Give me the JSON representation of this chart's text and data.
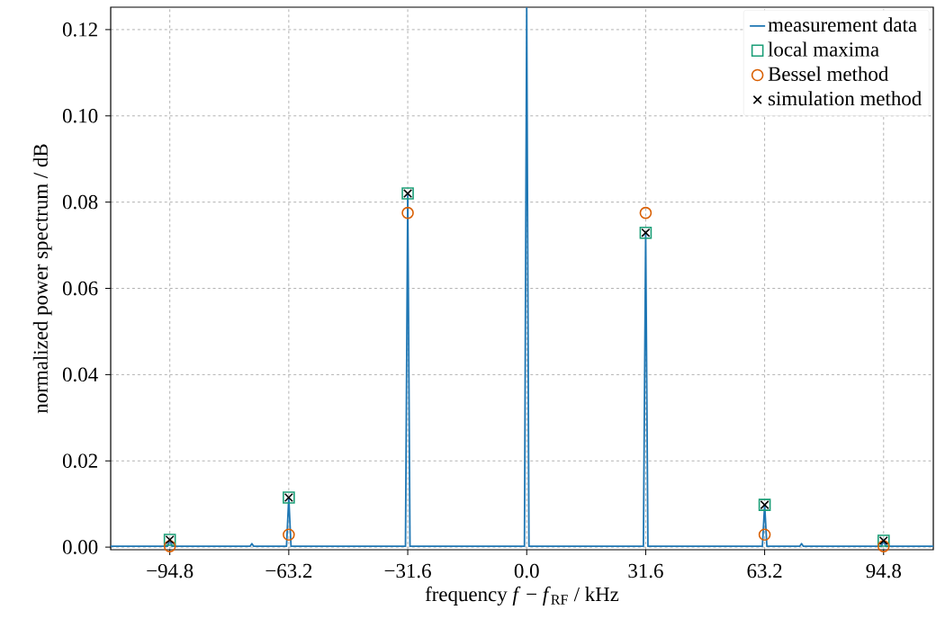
{
  "chart_data": {
    "type": "scatter",
    "xlabel": "frequency *f* − *f*$_{RF}$ / kHz",
    "ylabel": "normalized power spectrum / dB",
    "xlim": [
      -110.5,
      108
    ],
    "ylim": [
      -0.0006,
      0.1252
    ],
    "xticks": [
      {
        "value": -94.8,
        "label": "−94.8"
      },
      {
        "value": -63.2,
        "label": "−63.2"
      },
      {
        "value": -31.6,
        "label": "−31.6"
      },
      {
        "value": 0,
        "label": "0.0"
      },
      {
        "value": 31.6,
        "label": "31.6"
      },
      {
        "value": 63.2,
        "label": "63.2"
      },
      {
        "value": 94.8,
        "label": "94.8"
      }
    ],
    "yticks": [
      {
        "value": 0,
        "label": "0.00"
      },
      {
        "value": 0.02,
        "label": "0.02"
      },
      {
        "value": 0.04,
        "label": "0.04"
      },
      {
        "value": 0.06,
        "label": "0.06"
      },
      {
        "value": 0.08,
        "label": "0.08"
      },
      {
        "value": 0.1,
        "label": "0.10"
      },
      {
        "value": 0.12,
        "label": "0.12"
      }
    ],
    "grid": true,
    "legend": "top right",
    "series": [
      {
        "name": "measurement data",
        "type": "line",
        "marker": "none",
        "color": "#1f77b4",
        "x": [
          -110.5,
          -95.4,
          -94.8,
          -94.2,
          -73.5,
          -73,
          -72.5,
          -63.8,
          -63.2,
          -62.6,
          -32.2,
          -31.6,
          -31,
          -0.6,
          0,
          0.6,
          31,
          31.6,
          32.2,
          62.6,
          63.2,
          63.8,
          72.5,
          73,
          73.5,
          94.2,
          94.8,
          95.4,
          108
        ],
        "values": [
          0.0002,
          0.0002,
          0.0017,
          0.0002,
          0.0002,
          0.0008,
          0.0002,
          0.0002,
          0.0115,
          0.0002,
          0.0002,
          0.082,
          0.0002,
          0.0002,
          0.125,
          0.0002,
          0.0002,
          0.0729,
          0.0002,
          0.0002,
          0.0098,
          0.0002,
          0.0002,
          0.0008,
          0.0002,
          0.0002,
          0.0015,
          0.0002,
          0.0002
        ]
      },
      {
        "name": "local maxima",
        "marker": "square",
        "color": "#1b9e77",
        "x": [
          -94.8,
          -63.2,
          -31.6,
          31.6,
          63.2,
          94.8
        ],
        "values": [
          0.0017,
          0.0115,
          0.082,
          0.0729,
          0.0098,
          0.0015
        ]
      },
      {
        "name": "Bessel method",
        "marker": "circle",
        "color": "#d95f02",
        "x": [
          -94.8,
          -63.2,
          -31.6,
          31.6,
          63.2,
          94.8
        ],
        "values": [
          0.0002,
          0.0029,
          0.0775,
          0.0775,
          0.0029,
          0.0002
        ]
      },
      {
        "name": "simulation method",
        "marker": "cross",
        "color": "#000000",
        "x": [
          -94.8,
          -63.2,
          -31.6,
          31.6,
          63.2,
          94.8
        ],
        "values": [
          0.0017,
          0.0115,
          0.082,
          0.0729,
          0.0098,
          0.0015
        ]
      }
    ]
  }
}
